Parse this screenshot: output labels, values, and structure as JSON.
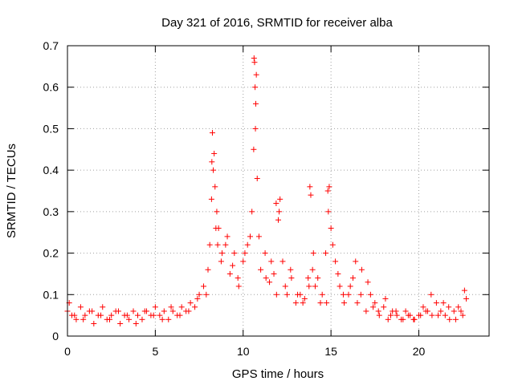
{
  "chart_data": {
    "type": "scatter",
    "title": "Day 321 of 2016, SRMTID for receiver alba",
    "xlabel": "GPS time / hours",
    "ylabel": "SRMTID / TECUs",
    "xlim": [
      0,
      24
    ],
    "ylim": [
      0,
      0.7
    ],
    "xticks": [
      0,
      5,
      10,
      15,
      20
    ],
    "yticks": [
      0,
      0.1,
      0.2,
      0.3,
      0.4,
      0.5,
      0.6,
      0.7
    ],
    "xtick_labels": [
      "0",
      "5",
      "10",
      "15",
      "20"
    ],
    "ytick_labels": [
      "0",
      "0.1",
      "0.2",
      "0.3",
      "0.4",
      "0.5",
      "0.6",
      "0.7"
    ],
    "grid": true,
    "marker": "+",
    "color": "#ff0000",
    "series": [
      {
        "name": "SRMTID",
        "x": [
          0.0,
          0.25,
          0.5,
          0.75,
          1.0,
          1.25,
          1.5,
          1.75,
          2.0,
          2.25,
          2.5,
          2.75,
          3.0,
          3.25,
          3.5,
          3.75,
          4.0,
          4.25,
          4.5,
          4.75,
          5.0,
          5.25,
          5.5,
          5.75,
          6.0,
          6.25,
          6.5,
          6.75,
          7.0,
          7.25,
          7.5,
          7.75,
          8.0,
          8.1,
          8.2,
          8.3,
          8.4,
          8.5,
          8.6,
          8.75,
          9.0,
          9.25,
          9.5,
          9.75,
          10.0,
          10.25,
          10.5,
          10.6,
          10.7,
          10.8,
          11.0,
          11.25,
          11.5,
          11.75,
          12.0,
          12.25,
          12.5,
          12.75,
          13.0,
          13.25,
          13.5,
          13.75,
          13.85,
          14.0,
          14.25,
          14.5,
          14.75,
          14.85,
          15.0,
          15.25,
          15.5,
          15.75,
          16.0,
          16.25,
          16.5,
          16.75,
          17.0,
          17.25,
          17.5,
          17.75,
          18.0,
          18.25,
          18.5,
          18.75,
          19.0,
          19.25,
          19.5,
          19.75,
          20.0,
          20.25,
          20.5,
          20.75,
          21.0,
          21.25,
          21.5,
          21.75,
          22.0,
          22.25,
          22.5,
          22.7,
          0.1,
          0.4,
          0.9,
          1.4,
          1.9,
          2.4,
          2.9,
          3.4,
          3.9,
          4.4,
          4.9,
          5.4,
          5.9,
          6.4,
          6.9,
          7.4,
          7.9,
          8.25,
          8.35,
          8.45,
          8.55,
          8.8,
          9.1,
          9.4,
          9.7,
          10.1,
          10.4,
          10.65,
          10.75,
          10.9,
          11.3,
          11.6,
          11.9,
          12.1,
          12.4,
          12.7,
          13.1,
          13.4,
          13.7,
          13.8,
          13.95,
          14.1,
          14.4,
          14.7,
          14.9,
          15.1,
          15.4,
          15.7,
          16.1,
          16.4,
          16.7,
          17.1,
          17.4,
          17.7,
          18.1,
          18.4,
          18.7,
          19.1,
          19.4,
          19.7,
          20.1,
          20.4,
          20.7,
          21.1,
          21.4,
          21.7,
          22.1,
          22.4,
          22.6,
          10.62,
          10.68,
          10.72,
          14.82,
          8.22,
          11.88,
          12.05
        ],
        "y": [
          0.06,
          0.05,
          0.04,
          0.07,
          0.05,
          0.06,
          0.03,
          0.05,
          0.07,
          0.04,
          0.05,
          0.06,
          0.03,
          0.05,
          0.04,
          0.06,
          0.05,
          0.04,
          0.06,
          0.05,
          0.07,
          0.05,
          0.06,
          0.04,
          0.06,
          0.05,
          0.07,
          0.06,
          0.08,
          0.07,
          0.1,
          0.12,
          0.16,
          0.22,
          0.33,
          0.4,
          0.36,
          0.3,
          0.26,
          0.18,
          0.22,
          0.15,
          0.2,
          0.12,
          0.18,
          0.22,
          0.3,
          0.45,
          0.5,
          0.38,
          0.16,
          0.2,
          0.13,
          0.15,
          0.28,
          0.18,
          0.1,
          0.14,
          0.08,
          0.1,
          0.09,
          0.12,
          0.34,
          0.2,
          0.14,
          0.1,
          0.08,
          0.3,
          0.26,
          0.18,
          0.12,
          0.08,
          0.1,
          0.14,
          0.08,
          0.16,
          0.06,
          0.1,
          0.08,
          0.05,
          0.07,
          0.04,
          0.06,
          0.05,
          0.04,
          0.06,
          0.05,
          0.04,
          0.05,
          0.07,
          0.06,
          0.05,
          0.08,
          0.06,
          0.05,
          0.04,
          0.06,
          0.07,
          0.05,
          0.09,
          0.08,
          0.05,
          0.04,
          0.06,
          0.05,
          0.04,
          0.06,
          0.05,
          0.03,
          0.06,
          0.05,
          0.04,
          0.07,
          0.05,
          0.06,
          0.09,
          0.1,
          0.49,
          0.44,
          0.26,
          0.22,
          0.2,
          0.24,
          0.17,
          0.14,
          0.2,
          0.24,
          0.66,
          0.63,
          0.24,
          0.14,
          0.18,
          0.1,
          0.33,
          0.12,
          0.16,
          0.1,
          0.08,
          0.14,
          0.36,
          0.16,
          0.12,
          0.08,
          0.2,
          0.36,
          0.22,
          0.15,
          0.1,
          0.12,
          0.18,
          0.1,
          0.13,
          0.07,
          0.06,
          0.09,
          0.05,
          0.06,
          0.04,
          0.05,
          0.04,
          0.05,
          0.06,
          0.1,
          0.05,
          0.08,
          0.07,
          0.04,
          0.06,
          0.11,
          0.67,
          0.6,
          0.56,
          0.35,
          0.42,
          0.32,
          0.3
        ]
      }
    ]
  }
}
